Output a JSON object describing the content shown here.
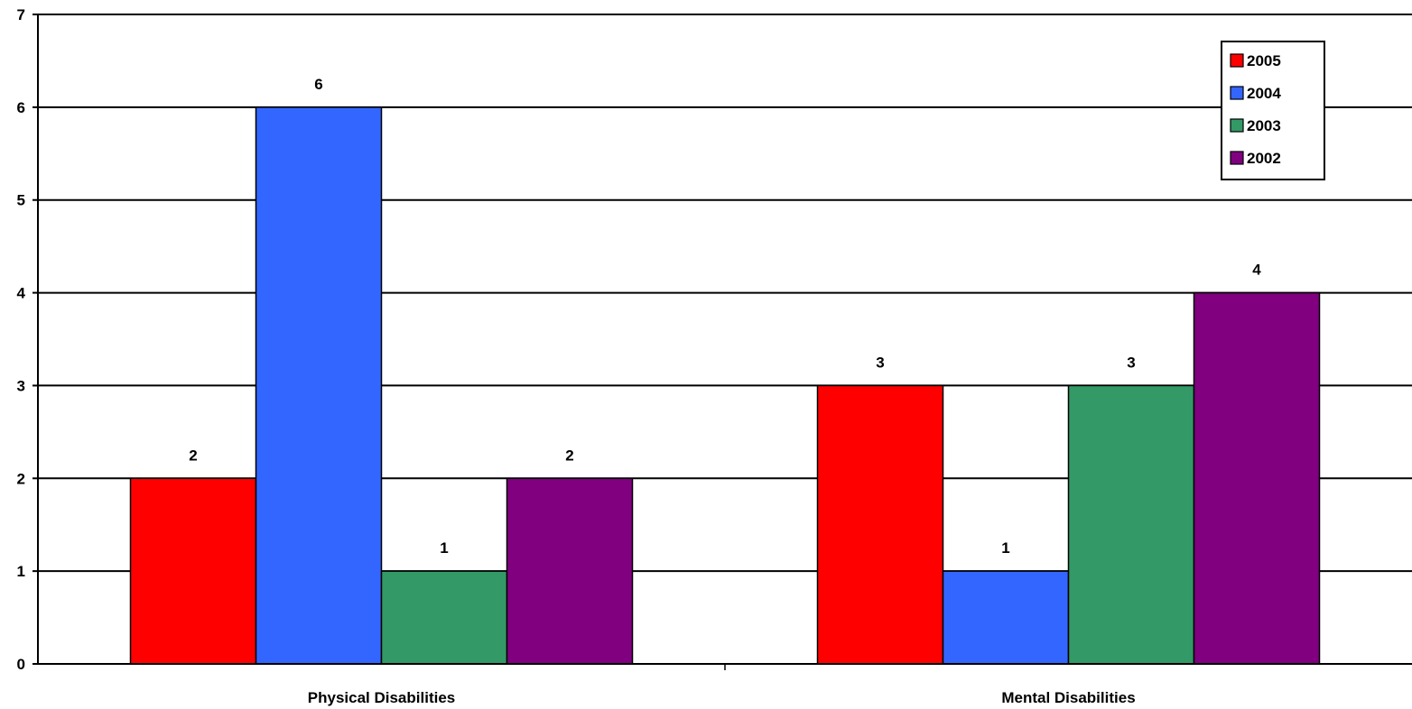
{
  "chart_data": {
    "type": "bar",
    "categories": [
      "Physical Disabilities",
      "Mental Disabilities"
    ],
    "series": [
      {
        "name": "2005",
        "color": "#ff0000",
        "values": [
          2,
          3
        ]
      },
      {
        "name": "2004",
        "color": "#3366ff",
        "values": [
          6,
          1
        ]
      },
      {
        "name": "2003",
        "color": "#339966",
        "values": [
          1,
          3
        ]
      },
      {
        "name": "2002",
        "color": "#800080",
        "values": [
          2,
          4
        ]
      }
    ],
    "ylim": [
      0,
      7
    ],
    "yticks": [
      "0",
      "1",
      "2",
      "3",
      "4",
      "5",
      "6",
      "7"
    ],
    "grid": true,
    "data_labels": true,
    "legend_position": "top-right"
  }
}
